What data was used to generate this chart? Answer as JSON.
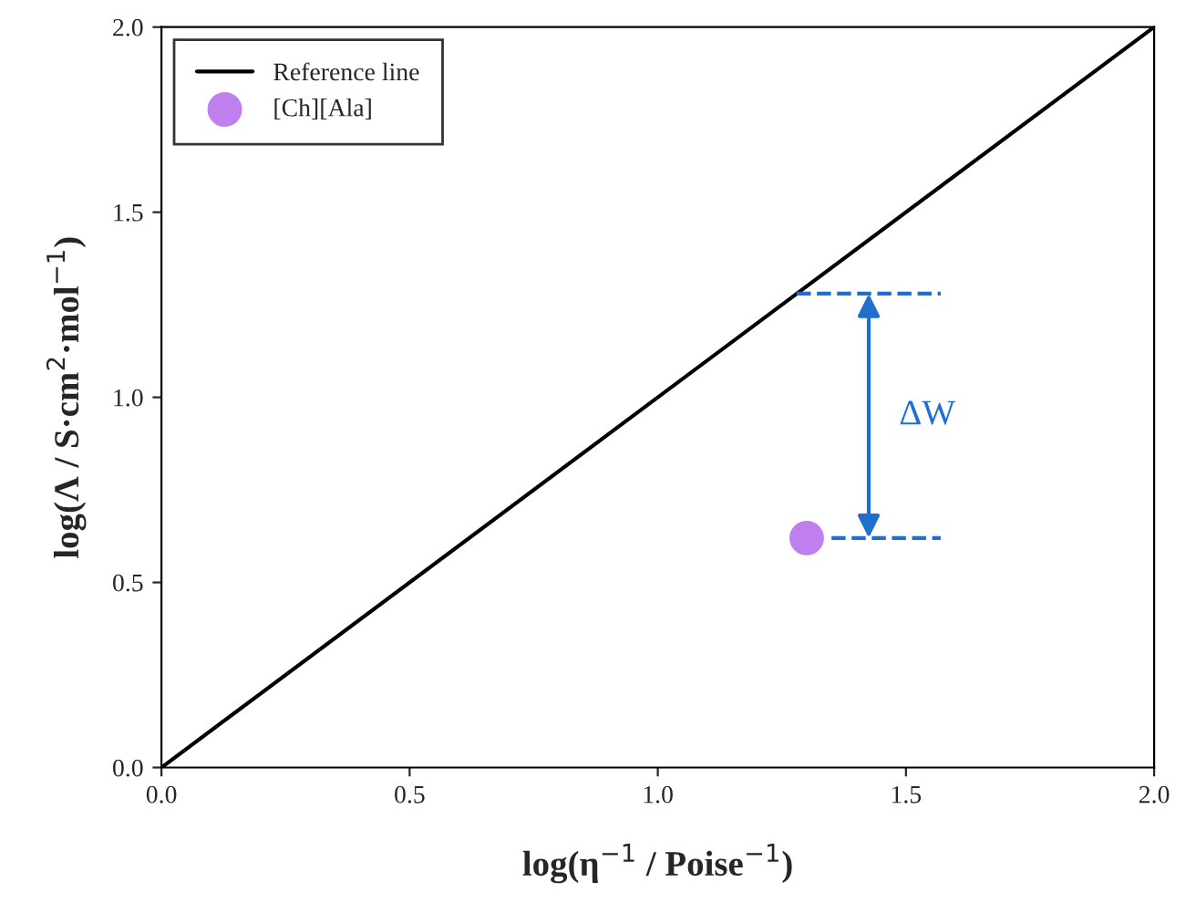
{
  "chart_data": {
    "type": "line",
    "xlabel": "log(η$^{−1}$ / Poise$^{−1}$)",
    "ylabel": "log(Λ / S·cm$^{2}$·mol$^{−1}$)",
    "xlim": [
      0,
      2
    ],
    "ylim": [
      0,
      2
    ],
    "xticks": [
      {
        "value": 0,
        "label": "0.0"
      },
      {
        "value": 0.5,
        "label": "0.5"
      },
      {
        "value": 1,
        "label": "1.0"
      },
      {
        "value": 1.5,
        "label": "1.5"
      },
      {
        "value": 2,
        "label": "2.0"
      }
    ],
    "yticks": [
      {
        "value": 0,
        "label": "0.0"
      },
      {
        "value": 0.5,
        "label": "0.5"
      },
      {
        "value": 1,
        "label": "1.0"
      },
      {
        "value": 1.5,
        "label": "1.5"
      },
      {
        "value": 2,
        "label": "2.0"
      }
    ],
    "grid": false,
    "legend": "top left",
    "series": [
      {
        "name": "Reference line",
        "color": "#000000",
        "x": [
          0,
          2
        ],
        "values": [
          0,
          2
        ],
        "line_style": "solid",
        "marker": "none"
      },
      {
        "type": "scatter",
        "name": "[Ch][Ala]",
        "color": "#bf7fef",
        "x": [
          1.3
        ],
        "values": [
          0.62
        ],
        "marker": "circle"
      },
      {
        "color": "#1f6fcf",
        "x": [
          1.28,
          1.57
        ],
        "values": [
          1.28,
          1.28
        ],
        "line_style": "dashed",
        "marker": "none"
      },
      {
        "color": "#1f6fcf",
        "x": [
          1.35,
          1.57
        ],
        "values": [
          0.62,
          0.62
        ],
        "line_style": "dashed",
        "marker": "none"
      }
    ],
    "annotations": [
      "ΔW"
    ]
  }
}
